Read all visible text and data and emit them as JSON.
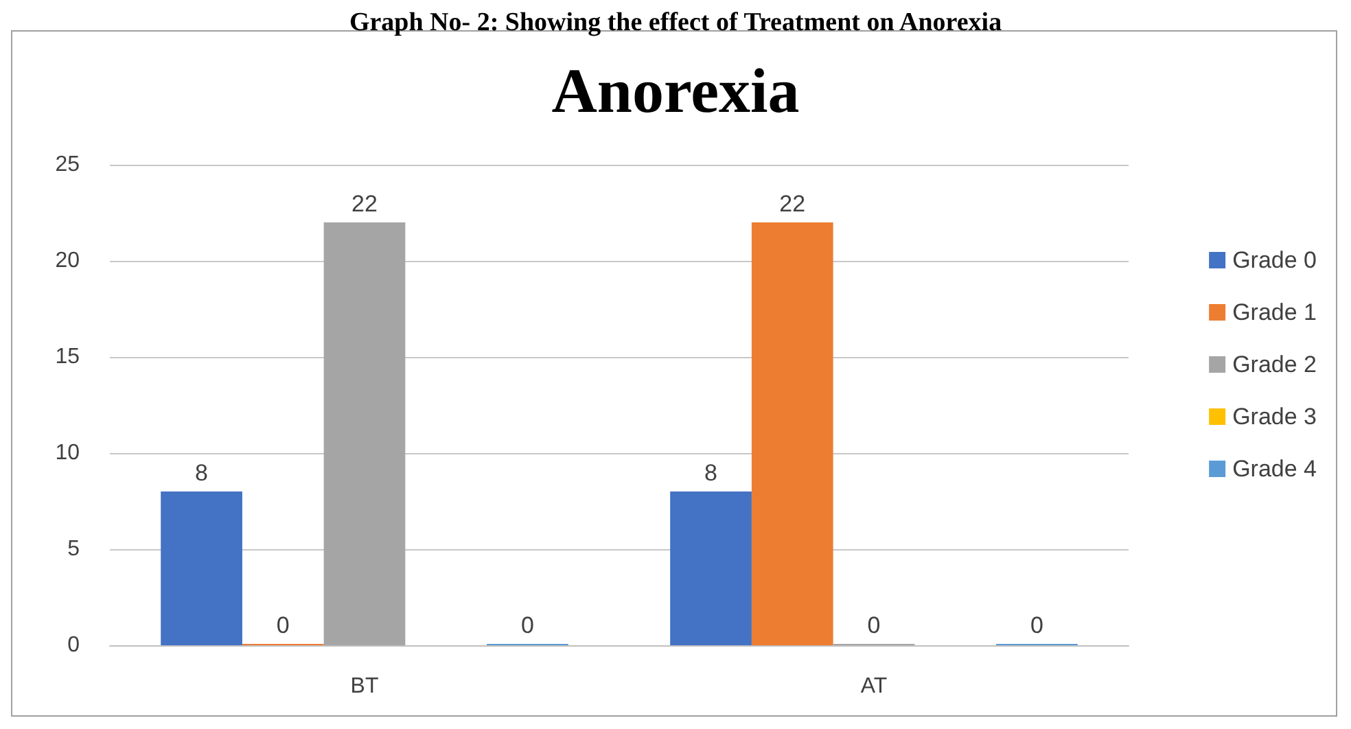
{
  "chart_data": {
    "type": "bar",
    "title": "Graph No- 2: Showing the effect of Treatment on Anorexia",
    "subtitle": "Anorexia",
    "categories": [
      "BT",
      "AT"
    ],
    "series": [
      {
        "name": "Grade 0",
        "color": "#4472c4",
        "values": [
          8,
          8
        ]
      },
      {
        "name": "Grade 1",
        "color": "#ed7d31",
        "values": [
          0,
          22
        ]
      },
      {
        "name": "Grade 2",
        "color": "#a5a5a5",
        "values": [
          22,
          0
        ]
      },
      {
        "name": "Grade 3",
        "color": "#ffc000",
        "values": [
          null,
          null
        ]
      },
      {
        "name": "Grade 4",
        "color": "#5b9bd5",
        "values": [
          0,
          0
        ]
      }
    ],
    "ylim": [
      0,
      25
    ],
    "yticks": [
      0,
      5,
      10,
      15,
      20,
      25
    ],
    "grid": "y",
    "legend": "right",
    "data_labels": true
  }
}
